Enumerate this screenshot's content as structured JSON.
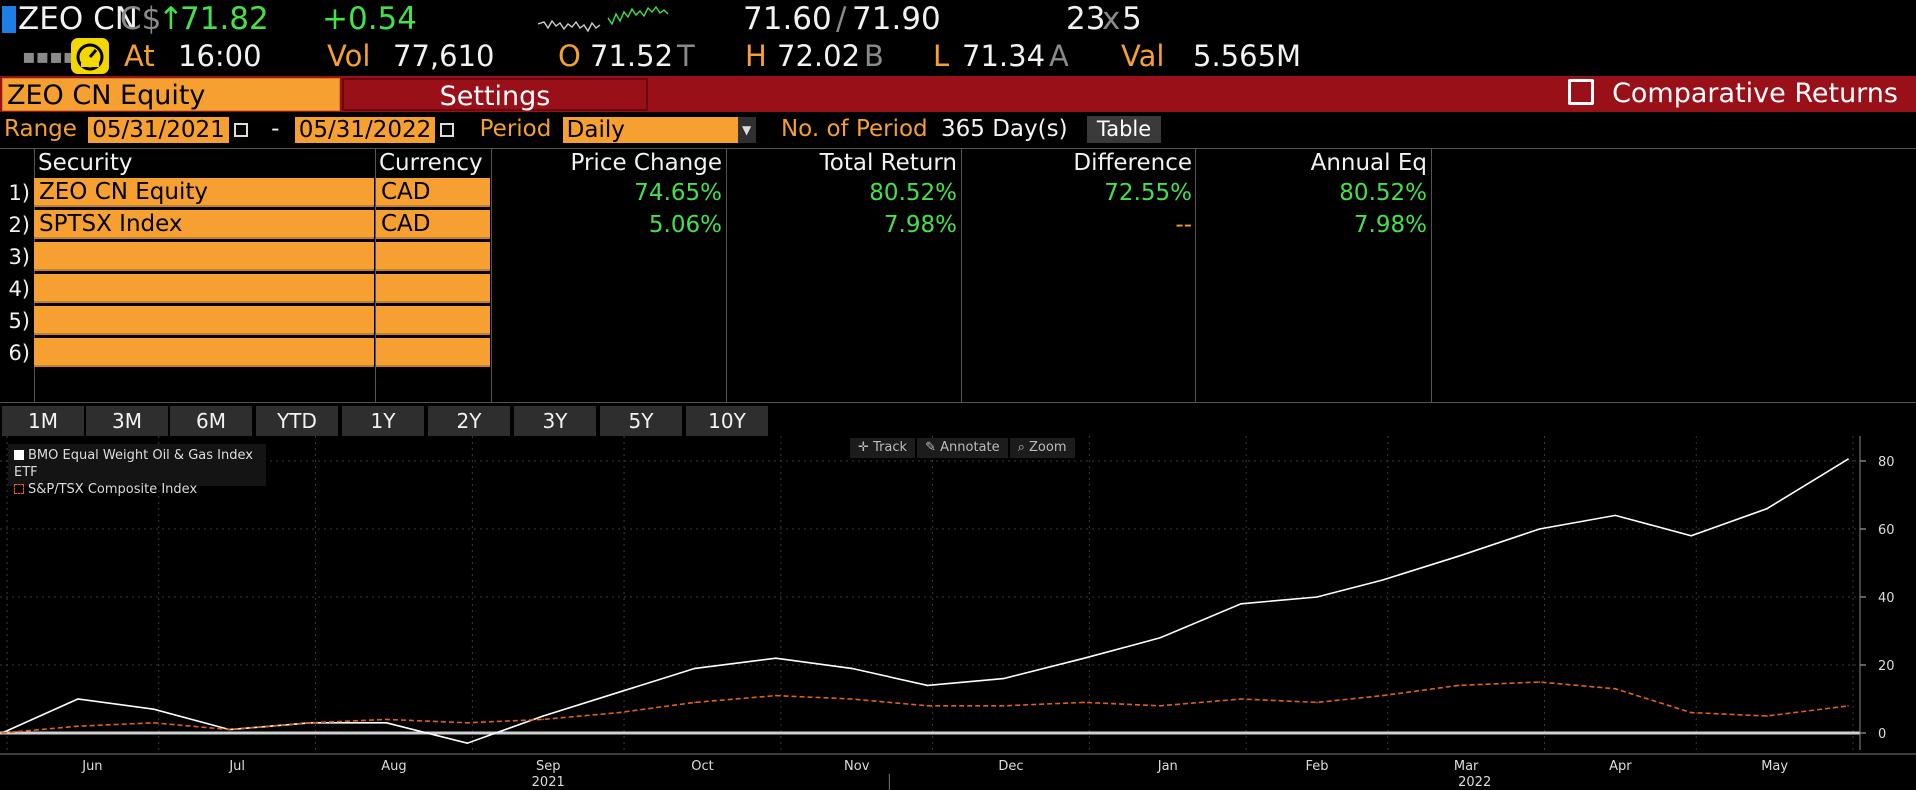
{
  "ticker": {
    "symbol": "ZEO CN",
    "currency": "C$",
    "arrow": "↑",
    "last": "71.82",
    "change": "+0.54",
    "bid": "71.60",
    "slash": "/",
    "ask": "71.90",
    "size_bid": "23",
    "size_x": "x",
    "size_ask": "5",
    "at_label": "At",
    "time": "16:00",
    "vol_label": "Vol",
    "volume": "77,610",
    "open_label": "O",
    "open": "71.52",
    "open_src": "T",
    "high_label": "H",
    "high": "72.02",
    "high_src": "B",
    "low_label": "L",
    "low": "71.34",
    "low_src": "A",
    "val_label": "Val",
    "value": "5.565M"
  },
  "titlebar": {
    "security": "ZEO CN Equity",
    "settings": "Settings",
    "title": "Comparative Returns"
  },
  "range": {
    "label": "Range",
    "start": "05/31/2021",
    "sep": "-",
    "end": "05/31/2022",
    "period_label": "Period",
    "period": "Daily",
    "nop_label": "No. of Period",
    "nop_value": "365 Day(s)",
    "table_button": "Table"
  },
  "table": {
    "headers": {
      "security": "Security",
      "currency": "Currency",
      "price_change": "Price Change",
      "total_return": "Total Return",
      "difference": "Difference",
      "annual_eq": "Annual Eq"
    },
    "rows": [
      {
        "num": "1)",
        "security": "ZEO CN Equity",
        "currency": "CAD",
        "price_change": "74.65%",
        "total_return": "80.52%",
        "difference": "72.55%",
        "annual_eq": "80.52%"
      },
      {
        "num": "2)",
        "security": "SPTSX Index",
        "currency": "CAD",
        "price_change": "5.06%",
        "total_return": "7.98%",
        "difference": "--",
        "annual_eq": "7.98%"
      },
      {
        "num": "3)",
        "security": "",
        "currency": ""
      },
      {
        "num": "4)",
        "security": "",
        "currency": ""
      },
      {
        "num": "5)",
        "security": "",
        "currency": ""
      },
      {
        "num": "6)",
        "security": "",
        "currency": ""
      }
    ]
  },
  "periods": [
    "1M",
    "3M",
    "6M",
    "YTD",
    "1Y",
    "2Y",
    "3Y",
    "5Y",
    "10Y"
  ],
  "chart_tools": {
    "track": "Track",
    "annotate": "Annotate",
    "zoom": "Zoom"
  },
  "colors": {
    "accent_orange": "#f5a030",
    "title_red": "#9a1018",
    "positive_green": "#45e04a",
    "series_white": "#ffffff",
    "series_orange": "#e06020"
  },
  "chart_data": {
    "type": "line",
    "ylim": [
      -5,
      85
    ],
    "yticks": [
      "80",
      "60",
      "40",
      "20",
      "0"
    ],
    "ytick_values": [
      80,
      60,
      40,
      20,
      0
    ],
    "xticks_month": [
      "Jun",
      "Jul",
      "Aug",
      "Sep",
      "Oct",
      "Nov",
      "Dec",
      "Jan",
      "Feb",
      "Mar",
      "Apr",
      "May"
    ],
    "xticks_year": [
      "2021",
      "2022"
    ],
    "legend": [
      "BMO Equal Weight Oil & Gas Index ETF",
      "S&P/TSX Composite Index"
    ],
    "x": [
      "2021-05-31",
      "2021-06-15",
      "2021-06-30",
      "2021-07-15",
      "2021-07-31",
      "2021-08-15",
      "2021-08-31",
      "2021-09-15",
      "2021-09-30",
      "2021-10-15",
      "2021-10-31",
      "2021-11-15",
      "2021-11-30",
      "2021-12-15",
      "2021-12-31",
      "2022-01-15",
      "2022-01-31",
      "2022-02-15",
      "2022-02-28",
      "2022-03-15",
      "2022-03-31",
      "2022-04-15",
      "2022-04-30",
      "2022-05-15",
      "2022-05-31"
    ],
    "series": [
      {
        "name": "BMO Equal Weight Oil & Gas Index ETF",
        "values": [
          0,
          10,
          7,
          1,
          3,
          3,
          -3,
          5,
          12,
          19,
          22,
          19,
          14,
          16,
          22,
          28,
          38,
          40,
          45,
          52,
          60,
          64,
          58,
          66,
          80.52
        ]
      },
      {
        "name": "S&P/TSX Composite Index",
        "values": [
          0,
          2,
          3,
          1,
          3,
          4,
          3,
          4,
          6,
          9,
          11,
          10,
          8,
          8,
          9,
          8,
          10,
          9,
          11,
          14,
          15,
          13,
          6,
          5,
          7.98
        ]
      }
    ]
  }
}
